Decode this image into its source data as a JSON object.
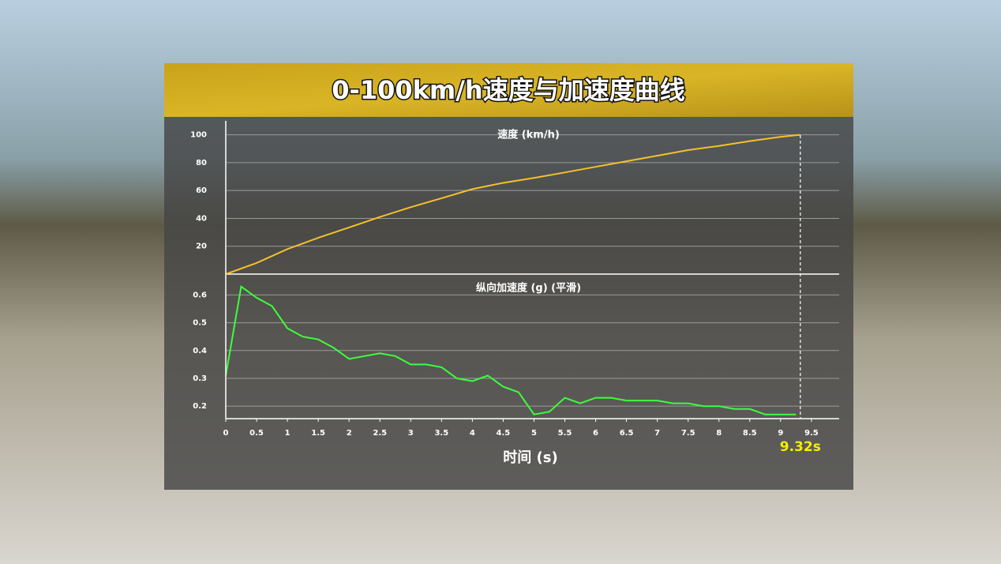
{
  "chart_data": [
    {
      "type": "line",
      "title": "0-100km/h速度与加速度曲线",
      "x": [
        0,
        0.5,
        1,
        1.5,
        2,
        2.5,
        3,
        3.5,
        4,
        4.5,
        5,
        5.5,
        6,
        6.5,
        7,
        7.5,
        8,
        8.5,
        9,
        9.32
      ],
      "series": [
        {
          "name": "速度 (km/h)",
          "color": "#f5c02a",
          "values": [
            0,
            8,
            18,
            26,
            33.5,
            41,
            48,
            54.5,
            61,
            65.5,
            69,
            73,
            77,
            81,
            85,
            89,
            92,
            95.5,
            98.5,
            100
          ]
        }
      ],
      "xlim": [
        0,
        9.95
      ],
      "ylim": [
        0,
        110
      ],
      "yticks": [
        20,
        40,
        60,
        80,
        100
      ],
      "grid": true
    },
    {
      "type": "line",
      "x": [
        0,
        0.25,
        0.5,
        0.75,
        1,
        1.25,
        1.5,
        1.75,
        2,
        2.25,
        2.5,
        2.75,
        3,
        3.25,
        3.5,
        3.75,
        4,
        4.25,
        4.5,
        4.75,
        5,
        5.25,
        5.5,
        5.75,
        6,
        6.25,
        6.5,
        6.75,
        7,
        7.25,
        7.5,
        7.75,
        8,
        8.25,
        8.5,
        8.75,
        9,
        9.25
      ],
      "series": [
        {
          "name": "纵向加速度 (g) (平滑)",
          "color": "#3cff3c",
          "values": [
            0.31,
            0.63,
            0.59,
            0.56,
            0.48,
            0.45,
            0.44,
            0.41,
            0.37,
            0.38,
            0.39,
            0.38,
            0.35,
            0.35,
            0.34,
            0.3,
            0.29,
            0.31,
            0.27,
            0.25,
            0.17,
            0.18,
            0.23,
            0.21,
            0.23,
            0.23,
            0.22,
            0.22,
            0.22,
            0.21,
            0.21,
            0.2,
            0.2,
            0.19,
            0.19,
            0.17,
            0.17,
            0.17
          ]
        }
      ],
      "xlim": [
        0,
        9.95
      ],
      "xticks": [
        0,
        0.5,
        1,
        1.5,
        2,
        2.5,
        3,
        3.5,
        4,
        4.5,
        5,
        5.5,
        6,
        6.5,
        7,
        7.5,
        8,
        8.5,
        9,
        9.5
      ],
      "ylim": [
        0.155,
        0.675
      ],
      "yticks": [
        0.2,
        0.3,
        0.4,
        0.5,
        0.6
      ],
      "grid": true,
      "xlabel": "时间 (s)",
      "annotations": [
        {
          "value": 9.32,
          "label": "9.32s"
        }
      ]
    }
  ]
}
